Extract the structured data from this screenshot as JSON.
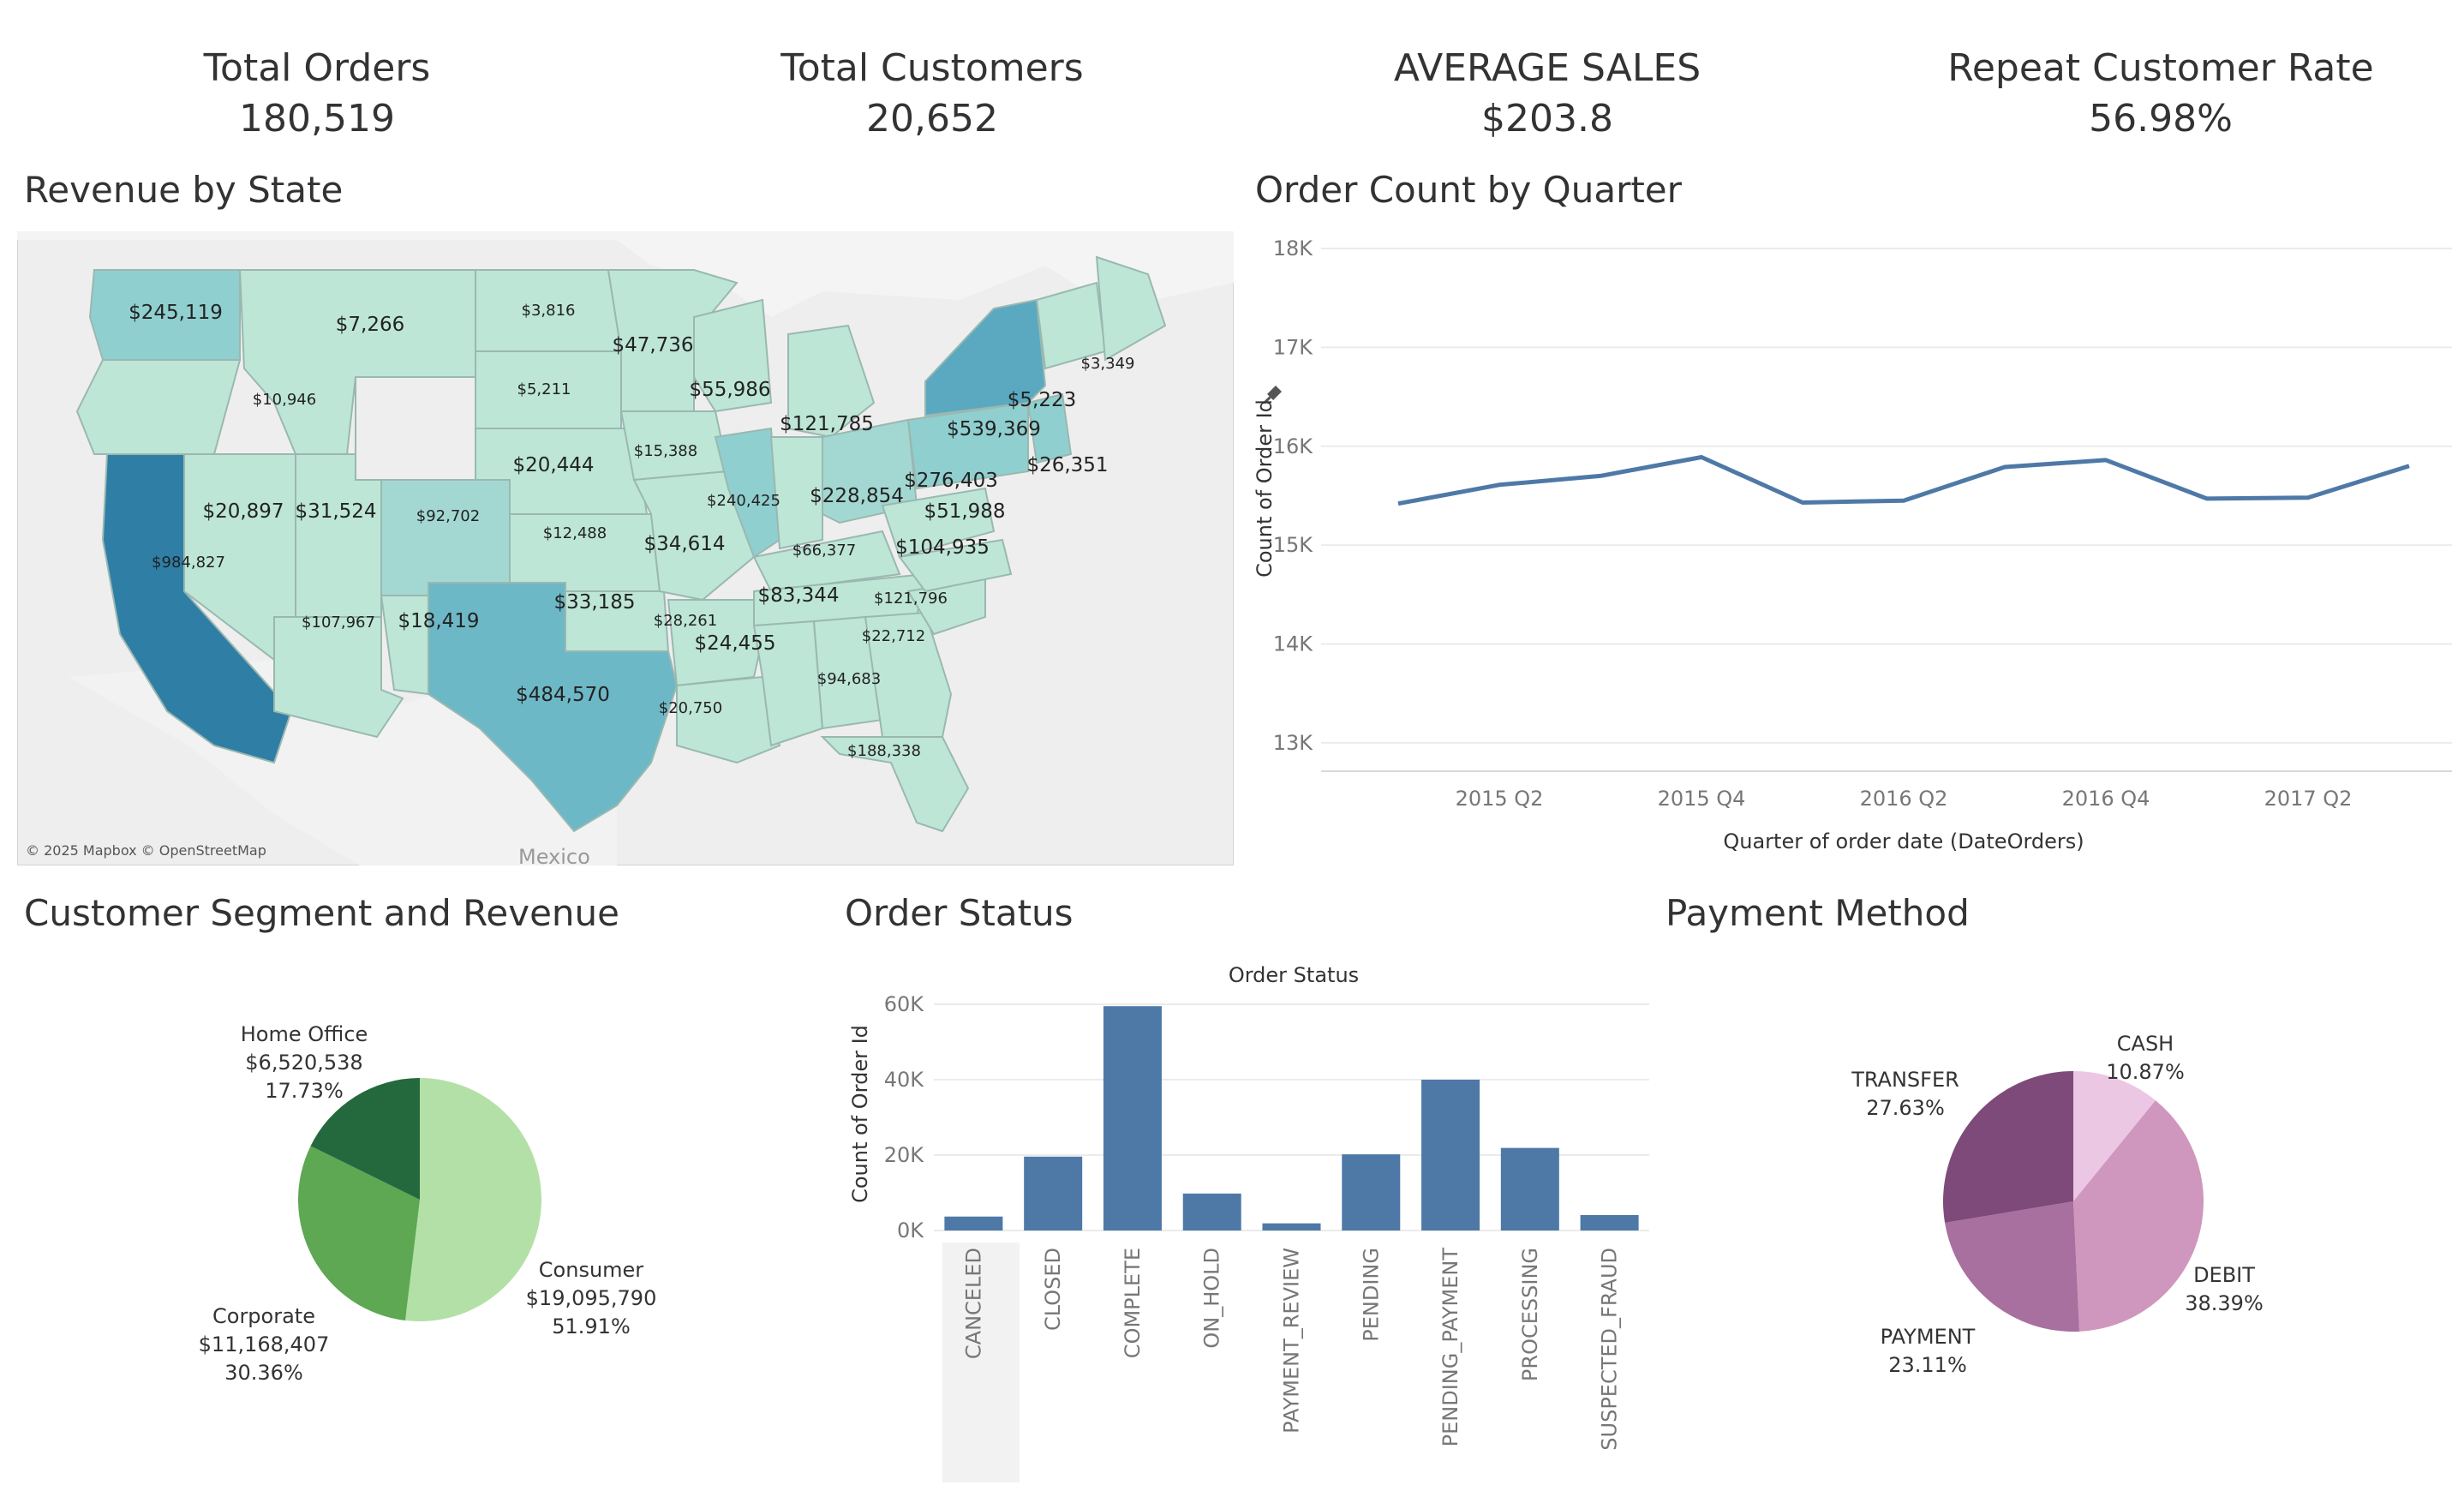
{
  "kpis": [
    {
      "title": "Total Orders",
      "value": "180,519"
    },
    {
      "title": "Total Customers",
      "value": "20,652"
    },
    {
      "title": "AVERAGE SALES",
      "value": "$203.8"
    },
    {
      "title": "Repeat Customer Rate",
      "value": "56.98%"
    }
  ],
  "map": {
    "title": "Revenue by State",
    "attribution": "© 2025 Mapbox © OpenStreetMap",
    "country_label": "Mexico",
    "colors": {
      "low": "#bde6d7",
      "mid": "#90cfcf",
      "high": "#3d8fb1",
      "top": "#2e7ea6"
    }
  },
  "chart_data": [
    {
      "type": "map",
      "title": "Revenue by State",
      "labels": [
        "$245,119",
        "$7,266",
        "$3,816",
        "$47,736",
        "$10,946",
        "$5,211",
        "$55,986",
        "$3,349",
        "$5,223",
        "$121,785",
        "$539,369",
        "$26,351",
        "$15,388",
        "$20,444",
        "$276,403",
        "$20,897",
        "$31,524",
        "$92,702",
        "$240,425",
        "$228,854",
        "$51,988",
        "$984,827",
        "$12,488",
        "$34,614",
        "$66,377",
        "$104,935",
        "$33,185",
        "$83,344",
        "$121,796",
        "$107,967",
        "$18,419",
        "$28,261",
        "$22,712",
        "$24,455",
        "$484,570",
        "$94,683",
        "$20,750",
        "$188,338"
      ]
    },
    {
      "type": "line",
      "title": "Order Count by Quarter",
      "xlabel": "Quarter of order date (DateOrders)",
      "ylabel": "Count of Order Id",
      "x": [
        "2015 Q1",
        "2015 Q2",
        "2015 Q3",
        "2015 Q4",
        "2016 Q1",
        "2016 Q2",
        "2016 Q3",
        "2016 Q4",
        "2017 Q1",
        "2017 Q2",
        "2017 Q3"
      ],
      "x_tick_labels": [
        "2015 Q2",
        "2015 Q4",
        "2016 Q2",
        "2016 Q4",
        "2017 Q2"
      ],
      "y": [
        15420,
        15610,
        15700,
        15890,
        15430,
        15450,
        15790,
        15860,
        15470,
        15480,
        15800
      ],
      "ylim": [
        12800,
        18000
      ],
      "y_ticks": [
        13000,
        14000,
        15000,
        16000,
        17000,
        18000
      ],
      "y_tick_labels": [
        "13K",
        "14K",
        "15K",
        "16K",
        "17K",
        "18K"
      ],
      "color": "#4e79a7"
    },
    {
      "type": "pie",
      "title": "Customer Segment and Revenue",
      "slices": [
        {
          "name": "Consumer",
          "value": "$19,095,790",
          "percent": 51.91,
          "percent_label": "51.91%",
          "color": "#b3e0a6"
        },
        {
          "name": "Corporate",
          "value": "$11,168,407",
          "percent": 30.36,
          "percent_label": "30.36%",
          "color": "#5ea753"
        },
        {
          "name": "Home Office",
          "value": "$6,520,538",
          "percent": 17.73,
          "percent_label": "17.73%",
          "color": "#24693d"
        }
      ]
    },
    {
      "type": "bar",
      "title": "Order Status",
      "chart_title": "Order Status",
      "ylabel": "Count of Order Id",
      "categories": [
        "CANCELED",
        "CLOSED",
        "COMPLETE",
        "ON_HOLD",
        "PAYMENT_REVIEW",
        "PENDING",
        "PENDING_PAYMENT",
        "PROCESSING",
        "SUSPECTED_FRAUD"
      ],
      "values": [
        3700,
        19600,
        59500,
        9800,
        1900,
        20200,
        40000,
        21900,
        4100
      ],
      "ylim": [
        0,
        60000
      ],
      "y_ticks": [
        0,
        20000,
        40000,
        60000
      ],
      "y_tick_labels": [
        "0K",
        "20K",
        "40K",
        "60K"
      ],
      "highlighted": "CANCELED",
      "color": "#4e79a7"
    },
    {
      "type": "pie",
      "title": "Payment Method",
      "slices": [
        {
          "name": "CASH",
          "percent": 10.87,
          "percent_label": "10.87%",
          "color": "#ebc7e3"
        },
        {
          "name": "DEBIT",
          "percent": 38.39,
          "percent_label": "38.39%",
          "color": "#cf97bd"
        },
        {
          "name": "PAYMENT",
          "percent": 23.11,
          "percent_label": "23.11%",
          "color": "#a7709f"
        },
        {
          "name": "TRANSFER",
          "percent": 27.63,
          "percent_label": "27.63%",
          "color": "#7e4a79"
        }
      ]
    }
  ]
}
